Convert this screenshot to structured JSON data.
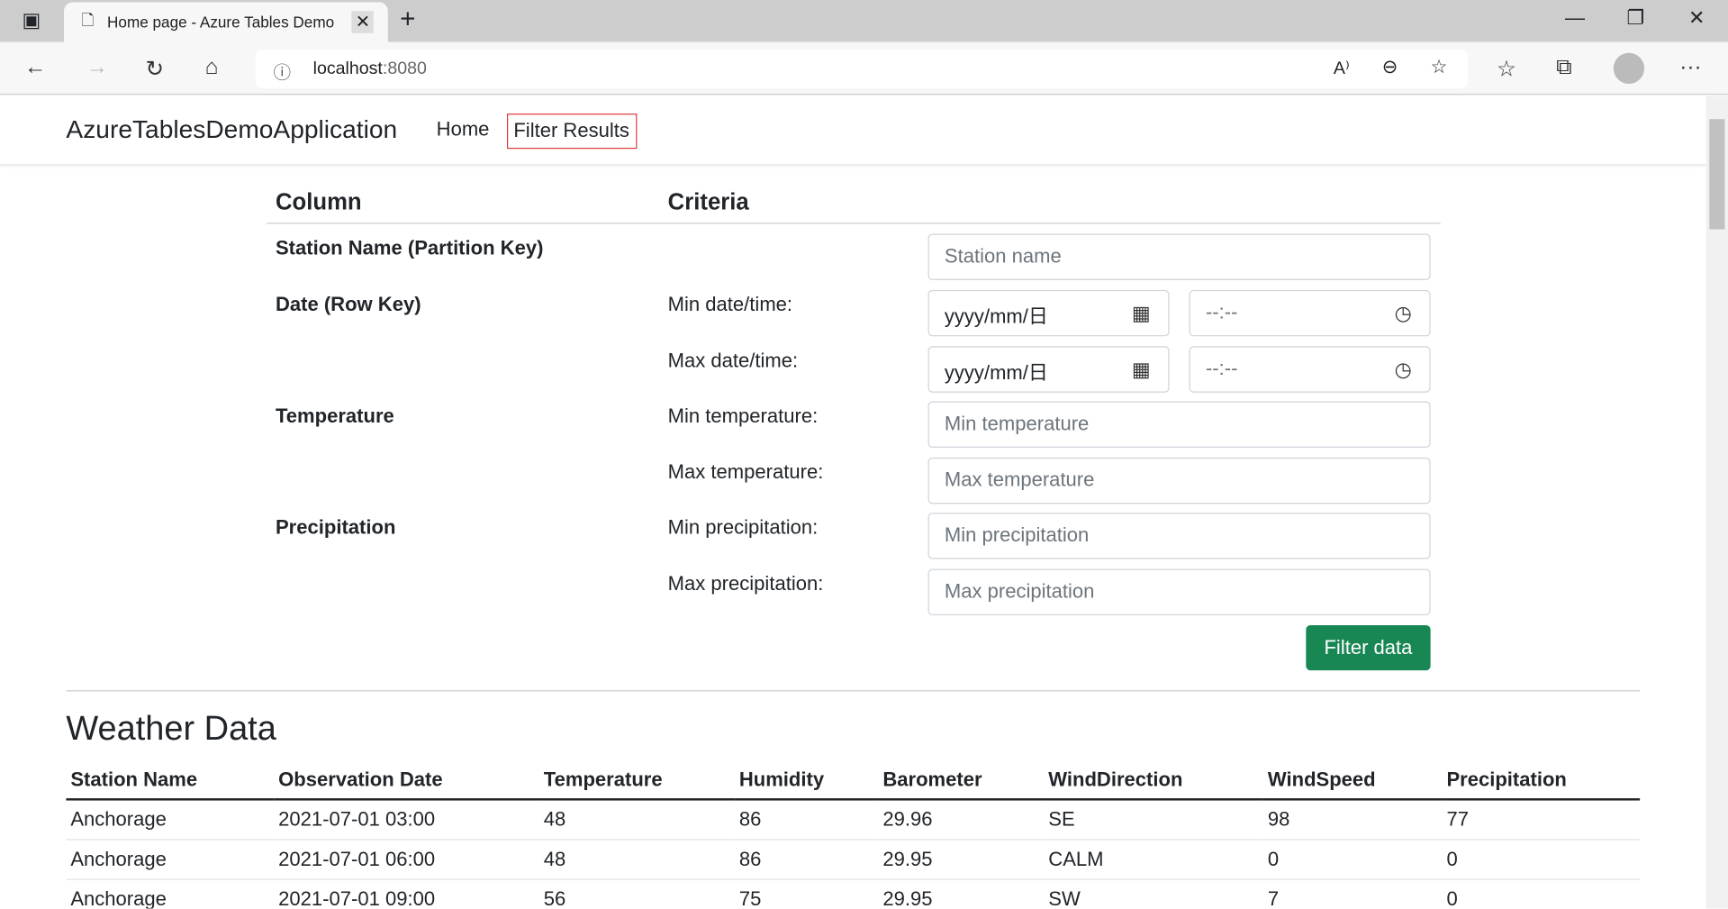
{
  "browser": {
    "tab_title": "Home page - Azure Tables Demo",
    "url_host": "localhost",
    "url_port": ":8080"
  },
  "nav": {
    "brand": "AzureTablesDemoApplication",
    "home": "Home",
    "filter_results": "Filter Results"
  },
  "filter": {
    "col_header": "Column",
    "crit_header": "Criteria",
    "station_label": "Station Name (Partition Key)",
    "station_placeholder": "Station name",
    "date_label": "Date (Row Key)",
    "min_date": "Min date/time:",
    "max_date": "Max date/time:",
    "date_placeholder": "yyyy/mm/日",
    "time_placeholder": "--:--",
    "temp_label": "Temperature",
    "min_temp": "Min temperature:",
    "max_temp": "Max temperature:",
    "min_temp_ph": "Min temperature",
    "max_temp_ph": "Max temperature",
    "precip_label": "Precipitation",
    "min_precip": "Min precipitation:",
    "max_precip": "Max precipitation:",
    "min_precip_ph": "Min precipitation",
    "max_precip_ph": "Max precipitation",
    "button": "Filter data",
    "button_color": "#198754"
  },
  "weather": {
    "title": "Weather Data",
    "columns": [
      "Station Name",
      "Observation Date",
      "Temperature",
      "Humidity",
      "Barometer",
      "WindDirection",
      "WindSpeed",
      "Precipitation"
    ],
    "rows": [
      [
        "Anchorage",
        "2021-07-01 03:00",
        "48",
        "86",
        "29.96",
        "SE",
        "98",
        "77"
      ],
      [
        "Anchorage",
        "2021-07-01 06:00",
        "48",
        "86",
        "29.95",
        "CALM",
        "0",
        "0"
      ],
      [
        "Anchorage",
        "2021-07-01 09:00",
        "56",
        "75",
        "29.95",
        "SW",
        "7",
        "0"
      ]
    ]
  }
}
